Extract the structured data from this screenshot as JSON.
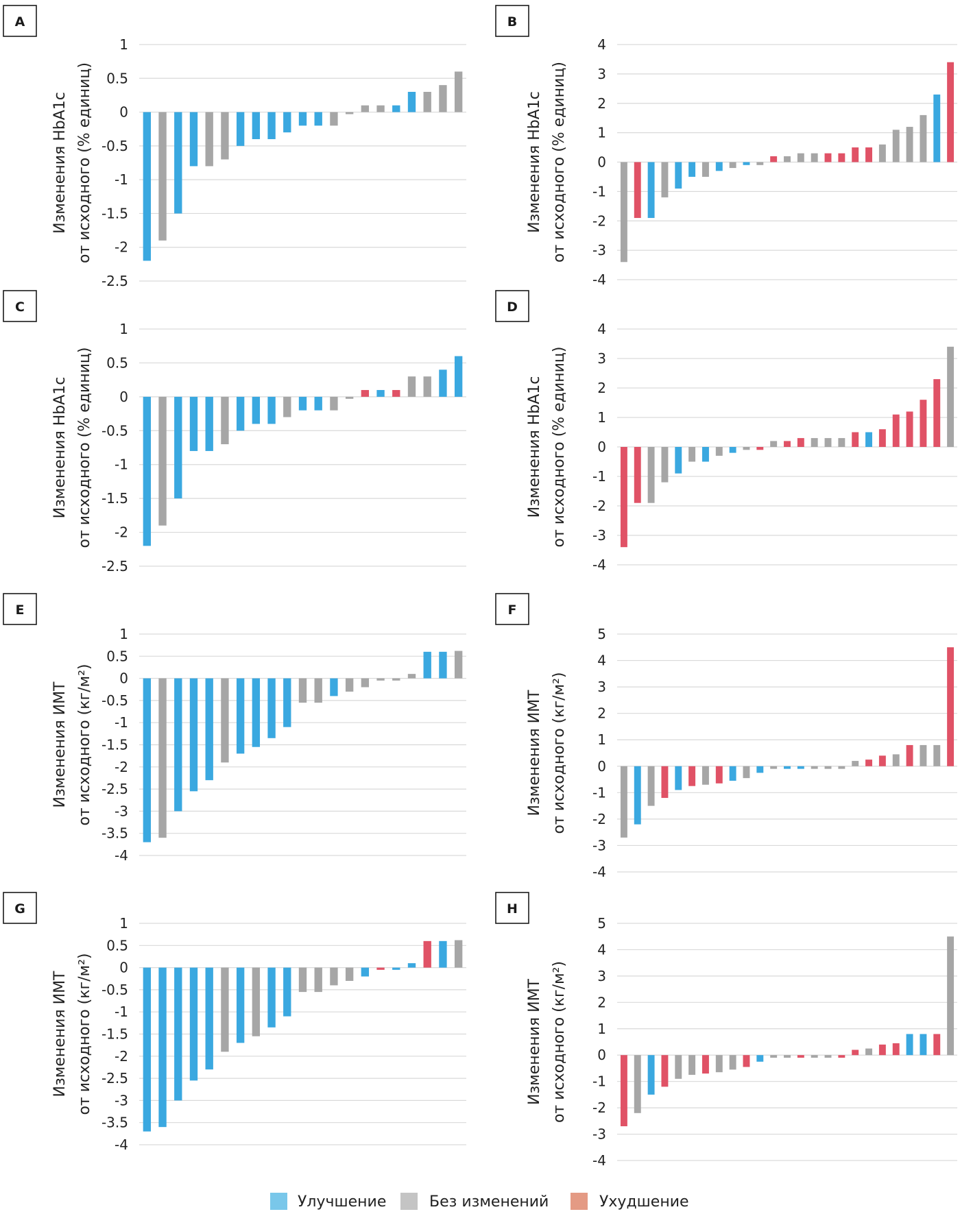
{
  "colors": {
    "improvement": "#3aa8e0",
    "no_change": "#a6a6a6",
    "worsening": "#e05266",
    "legend_improvement": "#79c7ea",
    "legend_no_change": "#c4c4c4",
    "legend_worsening": "#e49a84"
  },
  "legend": {
    "placement": "bottom-center",
    "items": [
      {
        "label": "Улучшение",
        "color_key": "legend_improvement"
      },
      {
        "label": "Без изменений",
        "color_key": "legend_no_change"
      },
      {
        "label": "Ухудшение",
        "color_key": "legend_worsening"
      }
    ]
  },
  "chart_data": [
    {
      "panel": "A",
      "type": "bar",
      "grid": true,
      "ylabel": [
        "Изменения HbA1c",
        "от исходного (% единиц)"
      ],
      "ylim": [
        -2.5,
        1
      ],
      "yticks": [
        1,
        0.5,
        0,
        -0.5,
        -1,
        -1.5,
        -2,
        -2.5
      ],
      "values": [
        -2.2,
        -1.9,
        -1.5,
        -0.8,
        -0.8,
        -0.7,
        -0.5,
        -0.4,
        -0.4,
        -0.3,
        -0.2,
        -0.2,
        -0.2,
        -0.03,
        0.1,
        0.1,
        0.1,
        0.3,
        0.3,
        0.4,
        0.6
      ],
      "status": [
        "improvement",
        "no_change",
        "improvement",
        "improvement",
        "no_change",
        "no_change",
        "improvement",
        "improvement",
        "improvement",
        "improvement",
        "improvement",
        "improvement",
        "no_change",
        "no_change",
        "no_change",
        "no_change",
        "improvement",
        "improvement",
        "no_change",
        "no_change",
        "no_change"
      ]
    },
    {
      "panel": "B",
      "type": "bar",
      "grid": true,
      "ylabel": [
        "Изменения HbA1c",
        "от исходного (% единиц)"
      ],
      "ylim": [
        -4,
        4
      ],
      "yticks": [
        4,
        3,
        2,
        1,
        0,
        -1,
        -2,
        -3,
        -4
      ],
      "values": [
        -3.4,
        -1.9,
        -1.9,
        -1.2,
        -0.9,
        -0.5,
        -0.5,
        -0.3,
        -0.2,
        -0.1,
        -0.1,
        0.2,
        0.2,
        0.3,
        0.3,
        0.3,
        0.3,
        0.5,
        0.5,
        0.6,
        1.1,
        1.2,
        1.6,
        2.3,
        3.4
      ],
      "status": [
        "no_change",
        "worsening",
        "improvement",
        "no_change",
        "improvement",
        "improvement",
        "no_change",
        "improvement",
        "no_change",
        "improvement",
        "no_change",
        "worsening",
        "no_change",
        "no_change",
        "no_change",
        "worsening",
        "worsening",
        "worsening",
        "worsening",
        "no_change",
        "no_change",
        "no_change",
        "no_change",
        "improvement",
        "worsening"
      ]
    },
    {
      "panel": "C",
      "type": "bar",
      "grid": true,
      "ylabel": [
        "Изменения HbA1c",
        "от исходного (% единиц)"
      ],
      "ylim": [
        -2.5,
        1
      ],
      "yticks": [
        1,
        0.5,
        0,
        -0.5,
        -1,
        -1.5,
        -2,
        -2.5
      ],
      "values": [
        -2.2,
        -1.9,
        -1.5,
        -0.8,
        -0.8,
        -0.7,
        -0.5,
        -0.4,
        -0.4,
        -0.3,
        -0.2,
        -0.2,
        -0.2,
        -0.03,
        0.1,
        0.1,
        0.1,
        0.3,
        0.3,
        0.4,
        0.6
      ],
      "status": [
        "improvement",
        "no_change",
        "improvement",
        "improvement",
        "improvement",
        "no_change",
        "improvement",
        "improvement",
        "improvement",
        "no_change",
        "improvement",
        "improvement",
        "no_change",
        "no_change",
        "worsening",
        "improvement",
        "worsening",
        "no_change",
        "no_change",
        "improvement",
        "improvement"
      ]
    },
    {
      "panel": "D",
      "type": "bar",
      "grid": true,
      "ylabel": [
        "Изменения HbA1c",
        "от исходного (% единиц)"
      ],
      "ylim": [
        -4,
        4
      ],
      "yticks": [
        4,
        3,
        2,
        1,
        0,
        -1,
        -2,
        -3,
        -4
      ],
      "values": [
        -3.4,
        -1.9,
        -1.9,
        -1.2,
        -0.9,
        -0.5,
        -0.5,
        -0.3,
        -0.2,
        -0.1,
        -0.1,
        0.2,
        0.2,
        0.3,
        0.3,
        0.3,
        0.3,
        0.5,
        0.5,
        0.6,
        1.1,
        1.2,
        1.6,
        2.3,
        3.4
      ],
      "status": [
        "worsening",
        "worsening",
        "no_change",
        "no_change",
        "improvement",
        "no_change",
        "improvement",
        "no_change",
        "improvement",
        "no_change",
        "worsening",
        "no_change",
        "worsening",
        "worsening",
        "no_change",
        "no_change",
        "no_change",
        "worsening",
        "improvement",
        "worsening",
        "worsening",
        "worsening",
        "worsening",
        "worsening",
        "no_change"
      ]
    },
    {
      "panel": "E",
      "type": "bar",
      "grid": true,
      "ylabel": [
        "Изменения ИМТ",
        "от исходного (кг/м²)"
      ],
      "ylim": [
        -4,
        1
      ],
      "yticks": [
        1,
        0.5,
        0,
        -0.5,
        -1,
        -1.5,
        -2,
        -2.5,
        -3,
        -3.5,
        -4
      ],
      "values": [
        -3.7,
        -3.6,
        -3.0,
        -2.55,
        -2.3,
        -1.9,
        -1.7,
        -1.55,
        -1.35,
        -1.1,
        -0.55,
        -0.55,
        -0.4,
        -0.3,
        -0.2,
        -0.05,
        -0.05,
        0.1,
        0.6,
        0.6,
        0.62
      ],
      "status": [
        "improvement",
        "no_change",
        "improvement",
        "improvement",
        "improvement",
        "no_change",
        "improvement",
        "improvement",
        "improvement",
        "improvement",
        "no_change",
        "no_change",
        "improvement",
        "no_change",
        "no_change",
        "no_change",
        "no_change",
        "no_change",
        "improvement",
        "improvement",
        "no_change"
      ]
    },
    {
      "panel": "F",
      "type": "bar",
      "grid": true,
      "ylabel": [
        "Изменения ИМТ",
        "от исходного (кг/м²)"
      ],
      "ylim": [
        -4,
        5
      ],
      "yticks": [
        5,
        4,
        3,
        2,
        1,
        0,
        -1,
        -2,
        -3,
        -4
      ],
      "values": [
        -2.7,
        -2.2,
        -1.5,
        -1.2,
        -0.9,
        -0.75,
        -0.7,
        -0.65,
        -0.55,
        -0.45,
        -0.25,
        -0.1,
        -0.1,
        -0.1,
        -0.1,
        -0.1,
        -0.1,
        0.2,
        0.25,
        0.4,
        0.45,
        0.8,
        0.8,
        0.8,
        4.5
      ],
      "status": [
        "no_change",
        "improvement",
        "no_change",
        "worsening",
        "improvement",
        "worsening",
        "no_change",
        "worsening",
        "improvement",
        "no_change",
        "improvement",
        "no_change",
        "improvement",
        "improvement",
        "no_change",
        "no_change",
        "no_change",
        "no_change",
        "worsening",
        "worsening",
        "no_change",
        "worsening",
        "no_change",
        "no_change",
        "worsening"
      ]
    },
    {
      "panel": "G",
      "type": "bar",
      "grid": true,
      "ylabel": [
        "Изменения ИМТ",
        "от исходного (кг/м²)"
      ],
      "ylim": [
        -4,
        1
      ],
      "yticks": [
        1,
        0.5,
        0,
        -0.5,
        -1,
        -1.5,
        -2,
        -2.5,
        -3,
        -3.5,
        -4
      ],
      "values": [
        -3.7,
        -3.6,
        -3.0,
        -2.55,
        -2.3,
        -1.9,
        -1.7,
        -1.55,
        -1.35,
        -1.1,
        -0.55,
        -0.55,
        -0.4,
        -0.3,
        -0.2,
        -0.05,
        -0.05,
        0.1,
        0.6,
        0.6,
        0.62
      ],
      "status": [
        "improvement",
        "improvement",
        "improvement",
        "improvement",
        "improvement",
        "no_change",
        "improvement",
        "no_change",
        "improvement",
        "improvement",
        "no_change",
        "no_change",
        "no_change",
        "no_change",
        "improvement",
        "worsening",
        "improvement",
        "improvement",
        "worsening",
        "improvement",
        "no_change"
      ]
    },
    {
      "panel": "H",
      "type": "bar",
      "grid": true,
      "ylabel": [
        "Изменения ИМТ",
        "от исходного (кг/м²)"
      ],
      "ylim": [
        -4,
        5
      ],
      "yticks": [
        5,
        4,
        3,
        2,
        1,
        0,
        -1,
        -2,
        -3,
        -4
      ],
      "values": [
        -2.7,
        -2.2,
        -1.5,
        -1.2,
        -0.9,
        -0.75,
        -0.7,
        -0.65,
        -0.55,
        -0.45,
        -0.25,
        -0.1,
        -0.1,
        -0.1,
        -0.1,
        -0.1,
        -0.1,
        0.2,
        0.25,
        0.4,
        0.45,
        0.8,
        0.8,
        0.8,
        4.5
      ],
      "status": [
        "worsening",
        "no_change",
        "improvement",
        "worsening",
        "no_change",
        "no_change",
        "worsening",
        "no_change",
        "no_change",
        "worsening",
        "improvement",
        "no_change",
        "no_change",
        "worsening",
        "no_change",
        "no_change",
        "worsening",
        "worsening",
        "no_change",
        "worsening",
        "worsening",
        "improvement",
        "improvement",
        "worsening",
        "no_change"
      ]
    }
  ]
}
